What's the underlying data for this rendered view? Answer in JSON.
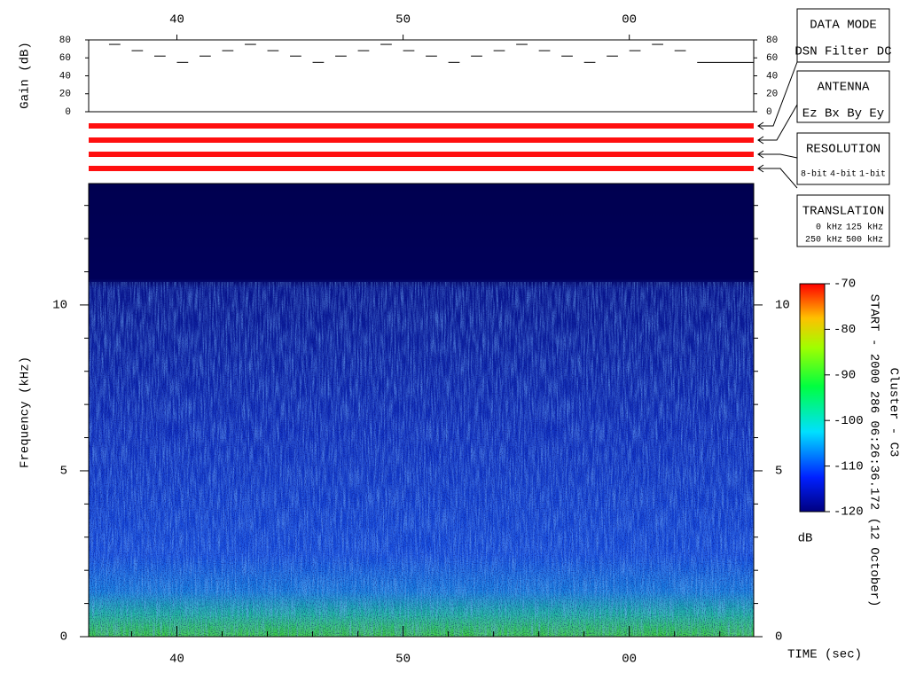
{
  "chart_data": [
    {
      "type": "gain",
      "y_label": "Gain (dB)",
      "x": [
        37,
        38,
        39,
        40,
        41,
        42,
        43,
        44,
        45,
        46,
        47,
        48,
        49,
        50,
        51,
        52,
        53,
        54,
        55,
        56,
        57,
        58,
        59,
        60,
        61,
        62,
        63
      ],
      "values": [
        75,
        68,
        62,
        55,
        62,
        68,
        75,
        68,
        62,
        55,
        62,
        68,
        75,
        68,
        62,
        55,
        62,
        68,
        75,
        68,
        62,
        55,
        62,
        68,
        75,
        68,
        55
      ],
      "color": "#000000",
      "xlim": [
        36.1,
        65.5
      ],
      "xticks": [
        40,
        50,
        {
          "value": 60,
          "label": "00"
        }
      ],
      "ylim": [
        0,
        80
      ],
      "yticks": [
        0,
        20,
        40,
        60,
        80
      ]
    },
    {
      "type": "spectrogram",
      "y_label": "Frequency (kHz)",
      "x_label": "TIME (sec)",
      "xlim": [
        36.1,
        65.5
      ],
      "xticks": [
        40,
        50,
        {
          "value": 60,
          "label": "00"
        }
      ],
      "x_minor_ticks": [
        38,
        42,
        44,
        46,
        48,
        52,
        54,
        56,
        58,
        62,
        64
      ],
      "ylim": [
        0,
        13.66
      ],
      "yticks": [
        0,
        5,
        10
      ],
      "y_minor_ticks": [
        1,
        2,
        3,
        4,
        6,
        7,
        8,
        9,
        11,
        12,
        13
      ],
      "colorbar": {
        "label": "dB",
        "lim": [
          -120,
          -70
        ],
        "ticks": [
          -70,
          -80,
          -90,
          -100,
          -110,
          -120
        ]
      }
    }
  ],
  "side_panel": [
    {
      "title": "DATA MODE",
      "options": [
        {
          "text": "DSN",
          "color": "#ff2020"
        },
        {
          "text": "Filter",
          "color": "#20e020"
        },
        {
          "text": "DC",
          "color": "#2020ff"
        }
      ]
    },
    {
      "title": "ANTENNA",
      "options": [
        {
          "text": "Ez",
          "color": "#ff2020"
        },
        {
          "text": "Bx",
          "color": "#20e020"
        },
        {
          "text": "By",
          "color": "#2020ff"
        },
        {
          "text": "Ey",
          "color": "#000000"
        }
      ]
    },
    {
      "title": "RESOLUTION",
      "options": [
        {
          "text": "8-bit",
          "color": "#ff2020"
        },
        {
          "text": "4-bit",
          "color": "#20e020"
        },
        {
          "text": "1-bit",
          "color": "#2020ff"
        }
      ]
    },
    {
      "title": "TRANSLATION",
      "options": [
        {
          "text": "0 kHz",
          "color": "#ff2020"
        },
        {
          "text": "125 kHz",
          "color": "#20e020"
        },
        {
          "text": "250 kHz",
          "color": "#2020ff"
        },
        {
          "text": "500 kHz",
          "color": "#000000"
        }
      ]
    }
  ],
  "caption": "START - 2000 286 06:26:36.172 (12 October)",
  "spacecraft": "Cluster - C3"
}
